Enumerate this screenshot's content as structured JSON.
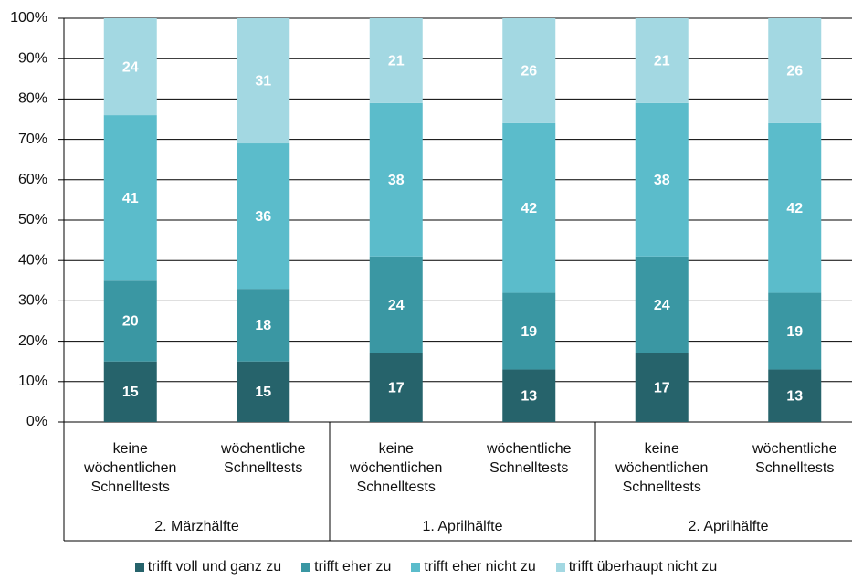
{
  "chart_data": {
    "type": "stacked_bar",
    "categories": [
      "keine wöchentlichen Schnelltests",
      "wöchentliche Schnelltests",
      "keine wöchentlichen Schnelltests",
      "wöchentliche Schnelltests",
      "keine wöchentlichen Schnelltests",
      "wöchentliche Schnelltests"
    ],
    "groups": [
      "2. Märzhälfte",
      "1. Aprilhälfte",
      "2. Aprilhälfte"
    ],
    "series": [
      {
        "name": "trifft voll und ganz zu",
        "color": "#26636b",
        "values": [
          15,
          15,
          17,
          13,
          17,
          13
        ]
      },
      {
        "name": "trifft eher zu",
        "color": "#3a97a3",
        "values": [
          20,
          18,
          24,
          19,
          24,
          19
        ]
      },
      {
        "name": "trifft eher nicht zu",
        "color": "#5bbccb",
        "values": [
          41,
          36,
          38,
          42,
          38,
          42
        ]
      },
      {
        "name": "trifft überhaupt nicht zu",
        "color": "#a3d8e2",
        "values": [
          24,
          31,
          21,
          26,
          21,
          26
        ]
      }
    ],
    "ylim": [
      0,
      100
    ],
    "yticks": [
      {
        "value": 0,
        "label": "0%"
      },
      {
        "value": 10,
        "label": "10%"
      },
      {
        "value": 20,
        "label": "20%"
      },
      {
        "value": 30,
        "label": "30%"
      },
      {
        "value": 40,
        "label": "40%"
      },
      {
        "value": 50,
        "label": "50%"
      },
      {
        "value": 60,
        "label": "60%"
      },
      {
        "value": 70,
        "label": "70%"
      },
      {
        "value": 80,
        "label": "80%"
      },
      {
        "value": 90,
        "label": "90%"
      },
      {
        "value": 100,
        "label": "100%"
      }
    ],
    "grid": true,
    "legend": "bottom"
  }
}
